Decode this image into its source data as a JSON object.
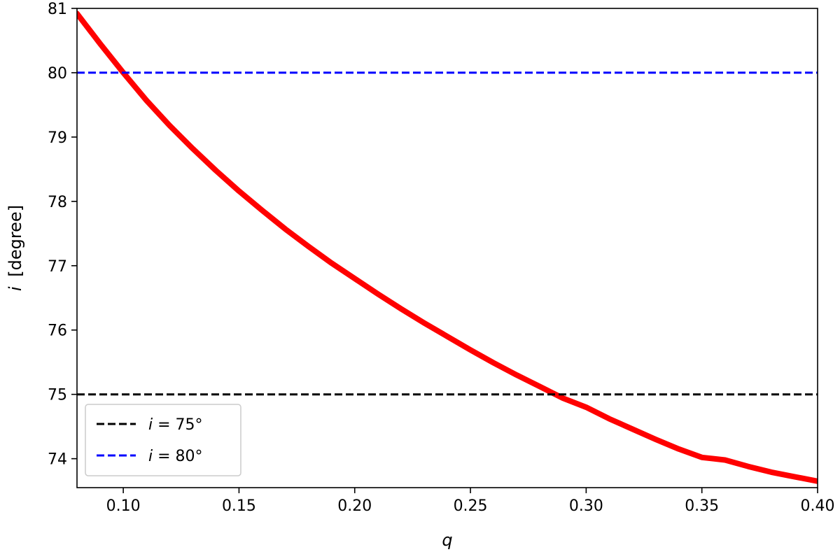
{
  "chart_data": {
    "type": "line",
    "xlabel": "q",
    "ylabel_symbol": "i",
    "ylabel_unit": "[degree]",
    "xlim": [
      0.08,
      0.4
    ],
    "ylim": [
      73.55,
      81.0
    ],
    "xticks": [
      0.1,
      0.15,
      0.2,
      0.25,
      0.3,
      0.35,
      0.4
    ],
    "xtick_labels": [
      "0.10",
      "0.15",
      "0.20",
      "0.25",
      "0.30",
      "0.35",
      "0.40"
    ],
    "yticks": [
      74,
      75,
      76,
      77,
      78,
      79,
      80,
      81
    ],
    "ytick_labels": [
      "74",
      "75",
      "76",
      "77",
      "78",
      "79",
      "80",
      "81"
    ],
    "grid": false,
    "legend_position": "lower-left",
    "series": [
      {
        "color": "#ff0000",
        "style": "solid",
        "x": [
          0.08,
          0.09,
          0.1,
          0.11,
          0.12,
          0.13,
          0.14,
          0.15,
          0.16,
          0.17,
          0.18,
          0.19,
          0.2,
          0.21,
          0.22,
          0.23,
          0.24,
          0.25,
          0.26,
          0.27,
          0.28,
          0.29,
          0.3,
          0.31,
          0.32,
          0.33,
          0.34,
          0.35,
          0.36,
          0.37,
          0.38,
          0.39,
          0.4
        ],
        "y": [
          80.92,
          80.45,
          80.0,
          79.57,
          79.18,
          78.82,
          78.48,
          78.16,
          77.86,
          77.57,
          77.3,
          77.04,
          76.8,
          76.56,
          76.33,
          76.11,
          75.9,
          75.69,
          75.49,
          75.3,
          75.12,
          74.94,
          74.8,
          74.62,
          74.46,
          74.3,
          74.15,
          74.02,
          73.98,
          73.88,
          73.79,
          73.72,
          73.65
        ]
      },
      {
        "name": "i = 75°",
        "label_symbol": "i",
        "label_rest": " = 75°",
        "color": "#000000",
        "style": "dashed",
        "x": [
          0.08,
          0.4
        ],
        "y": [
          75,
          75
        ]
      },
      {
        "name": "i = 80°",
        "label_symbol": "i",
        "label_rest": " = 80°",
        "color": "#0000ff",
        "style": "dashed",
        "x": [
          0.08,
          0.4
        ],
        "y": [
          80,
          80
        ]
      }
    ]
  }
}
